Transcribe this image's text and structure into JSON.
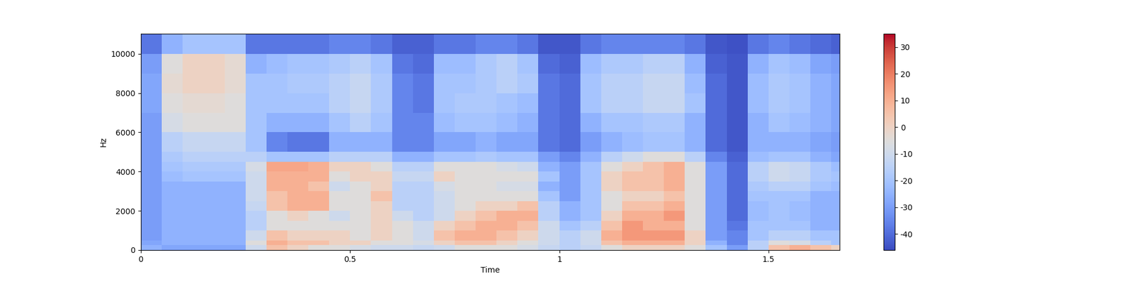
{
  "chart_data": {
    "type": "heatmap",
    "x_label": "Time",
    "y_label": "Hz",
    "color": "coolwarm",
    "xlim": [
      0,
      1.67
    ],
    "ylim": [
      0,
      11025
    ],
    "xticks": [
      0,
      0.5,
      1,
      1.5
    ],
    "yticks": [
      0,
      2000,
      4000,
      6000,
      8000,
      10000
    ],
    "colorbar_range": [
      -46,
      35
    ],
    "colorbar_ticks": [
      -40,
      -30,
      -20,
      -10,
      0,
      10,
      20,
      30
    ],
    "time_edges": [
      0,
      0.05,
      0.1,
      0.15,
      0.2,
      0.25,
      0.3,
      0.35,
      0.4,
      0.45,
      0.5,
      0.55,
      0.6,
      0.65,
      0.7,
      0.75,
      0.8,
      0.85,
      0.9,
      0.95,
      1.0,
      1.05,
      1.1,
      1.15,
      1.2,
      1.25,
      1.3,
      1.35,
      1.4,
      1.45,
      1.5,
      1.55,
      1.6,
      1.65,
      1.67
    ],
    "freq_edges": [
      0,
      250,
      500,
      1000,
      1500,
      2000,
      2500,
      3000,
      3500,
      4000,
      4500,
      5000,
      6000,
      7000,
      8000,
      9000,
      10000,
      11025
    ],
    "cells": [
      [
        -25,
        -28,
        -28,
        -28,
        -28,
        -10,
        5,
        0,
        -5,
        -5,
        -8,
        -10,
        -10,
        -12,
        -10,
        -5,
        -5,
        -5,
        -8,
        -12,
        -15,
        -12,
        -5,
        0,
        0,
        0,
        -5,
        -20,
        -30,
        -15,
        5,
        10,
        5,
        0
      ],
      [
        -28,
        -25,
        -25,
        -25,
        -25,
        -5,
        10,
        5,
        5,
        0,
        0,
        -5,
        -5,
        -8,
        0,
        5,
        5,
        0,
        -5,
        -10,
        -15,
        -10,
        5,
        10,
        10,
        10,
        0,
        -25,
        -35,
        -15,
        -5,
        -8,
        -15,
        -20
      ],
      [
        -30,
        -25,
        -25,
        -25,
        -25,
        -10,
        5,
        0,
        0,
        0,
        -5,
        0,
        -5,
        -10,
        5,
        10,
        10,
        5,
        0,
        -10,
        -15,
        -10,
        10,
        15,
        15,
        15,
        0,
        -30,
        -35,
        -20,
        -15,
        -15,
        -20,
        -20
      ],
      [
        -30,
        -25,
        -25,
        -25,
        -25,
        -15,
        -5,
        -5,
        -5,
        -5,
        -5,
        0,
        -5,
        -10,
        0,
        5,
        10,
        10,
        5,
        -10,
        -20,
        -15,
        5,
        15,
        10,
        10,
        -5,
        -30,
        -38,
        -20,
        -20,
        -20,
        -25,
        -25
      ],
      [
        -30,
        -25,
        -25,
        -25,
        -25,
        -15,
        -5,
        0,
        -5,
        -10,
        -5,
        0,
        -10,
        -15,
        -10,
        0,
        5,
        10,
        10,
        -15,
        -25,
        -20,
        0,
        10,
        10,
        15,
        -5,
        -30,
        -40,
        -22,
        -20,
        -22,
        -25,
        -25
      ],
      [
        -30,
        -25,
        -25,
        -25,
        -25,
        -12,
        5,
        10,
        10,
        -5,
        -5,
        0,
        -15,
        -15,
        -10,
        -5,
        0,
        0,
        5,
        -15,
        -25,
        -20,
        -5,
        5,
        5,
        10,
        -5,
        -30,
        -40,
        -22,
        -20,
        -22,
        -25,
        -25
      ],
      [
        -30,
        -25,
        -25,
        -25,
        -25,
        -10,
        5,
        10,
        10,
        -5,
        -5,
        5,
        -15,
        -15,
        -10,
        -5,
        -5,
        -5,
        -5,
        -20,
        -30,
        -20,
        -5,
        0,
        0,
        5,
        -5,
        -30,
        -40,
        -20,
        -20,
        -20,
        -25,
        -25
      ],
      [
        -30,
        -25,
        -25,
        -25,
        -25,
        -10,
        10,
        10,
        5,
        -10,
        -5,
        0,
        -15,
        -15,
        -8,
        -5,
        -5,
        -8,
        -8,
        -25,
        -30,
        -20,
        0,
        5,
        5,
        10,
        -5,
        -30,
        -40,
        -18,
        -15,
        -15,
        -20,
        -22
      ],
      [
        -30,
        -22,
        -20,
        -20,
        -20,
        -10,
        10,
        10,
        10,
        -5,
        0,
        0,
        -12,
        -12,
        0,
        -5,
        -5,
        -5,
        -5,
        -20,
        -30,
        -20,
        0,
        5,
        5,
        10,
        -5,
        -30,
        -40,
        -15,
        -10,
        -12,
        -18,
        -20
      ],
      [
        -30,
        -20,
        -18,
        -18,
        -18,
        -8,
        12,
        12,
        10,
        0,
        0,
        -5,
        -15,
        -15,
        -5,
        -5,
        -5,
        -8,
        -10,
        -25,
        -30,
        -20,
        -5,
        0,
        5,
        10,
        -5,
        -30,
        -40,
        -15,
        -10,
        -12,
        -18,
        -22
      ],
      [
        -30,
        -18,
        -15,
        -15,
        -15,
        -15,
        -20,
        -20,
        -20,
        -15,
        -15,
        -15,
        -25,
        -25,
        -20,
        -20,
        -18,
        -20,
        -20,
        -30,
        -35,
        -25,
        -15,
        -10,
        -5,
        -5,
        -15,
        -35,
        -42,
        -22,
        -20,
        -20,
        -25,
        -28
      ],
      [
        -30,
        -15,
        -12,
        -12,
        -12,
        -20,
        -35,
        -38,
        -38,
        -25,
        -25,
        -25,
        -35,
        -35,
        -28,
        -28,
        -25,
        -28,
        -28,
        -38,
        -40,
        -30,
        -25,
        -22,
        -20,
        -20,
        -25,
        -40,
        -44,
        -25,
        -25,
        -25,
        -28,
        -30
      ],
      [
        -30,
        -8,
        -5,
        -5,
        -5,
        -20,
        -25,
        -25,
        -25,
        -20,
        -15,
        -20,
        -35,
        -35,
        -22,
        -20,
        -20,
        -22,
        -25,
        -38,
        -40,
        -25,
        -20,
        -20,
        -18,
        -18,
        -25,
        -40,
        -44,
        -25,
        -20,
        -22,
        -25,
        -28
      ],
      [
        -28,
        -5,
        -3,
        -3,
        -5,
        -20,
        -20,
        -20,
        -20,
        -15,
        -12,
        -18,
        -35,
        -38,
        -20,
        -18,
        -18,
        -20,
        -22,
        -38,
        -40,
        -20,
        -15,
        -15,
        -12,
        -12,
        -20,
        -40,
        -44,
        -22,
        -18,
        -20,
        -25,
        -28
      ],
      [
        -28,
        -3,
        0,
        0,
        -3,
        -20,
        -20,
        -18,
        -18,
        -15,
        -12,
        -18,
        -35,
        -38,
        -20,
        -20,
        -18,
        -15,
        -18,
        -38,
        -40,
        -20,
        -15,
        -15,
        -12,
        -12,
        -22,
        -40,
        -44,
        -22,
        -18,
        -20,
        -25,
        -28
      ],
      [
        -30,
        -5,
        0,
        0,
        -3,
        -25,
        -22,
        -20,
        -20,
        -18,
        -15,
        -20,
        -38,
        -40,
        -22,
        -22,
        -18,
        -15,
        -20,
        -40,
        -42,
        -22,
        -18,
        -18,
        -15,
        -15,
        -25,
        -42,
        -44,
        -25,
        -20,
        -22,
        -28,
        -30
      ],
      [
        -38,
        -25,
        -20,
        -20,
        -20,
        -38,
        -38,
        -38,
        -38,
        -35,
        -35,
        -38,
        -42,
        -42,
        -38,
        -38,
        -35,
        -35,
        -38,
        -44,
        -44,
        -38,
        -35,
        -35,
        -35,
        -35,
        -38,
        -44,
        -45,
        -38,
        -35,
        -38,
        -40,
        -42
      ]
    ]
  }
}
